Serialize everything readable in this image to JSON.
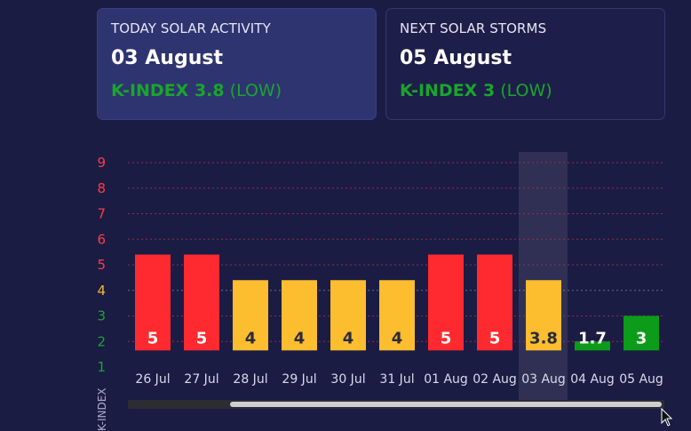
{
  "today_card": {
    "label": "TODAY SOLAR ACTIVITY",
    "date": "03 August",
    "kindex_label": "K-INDEX 3.8",
    "level": "(LOW)"
  },
  "next_card": {
    "label": "NEXT SOLAR STORMS",
    "date": "05 August",
    "kindex_label": "K-INDEX 3",
    "level": "(LOW)"
  },
  "chart_data": {
    "type": "bar",
    "categories": [
      "26 Jul",
      "27 Jul",
      "28 Jul",
      "29 Jul",
      "30 Jul",
      "31 Jul",
      "01 Aug",
      "02 Aug",
      "03 Aug",
      "04 Aug",
      "05 Aug"
    ],
    "values": [
      5,
      5,
      4,
      4,
      4,
      4,
      5,
      5,
      3.8,
      1.7,
      3
    ],
    "bar_heights": [
      5.4,
      5.4,
      4.4,
      4.4,
      4.4,
      4.4,
      5.4,
      5.4,
      4.4,
      2.0,
      3.0
    ],
    "bar_labels": [
      "5",
      "5",
      "4",
      "4",
      "4",
      "4",
      "5",
      "5",
      "3.8",
      "1.7",
      "3"
    ],
    "bar_colors": [
      "#ff2a2f",
      "#ff2a2f",
      "#fcbd2f",
      "#fcbd2f",
      "#fcbd2f",
      "#fcbd2f",
      "#ff2a2f",
      "#ff2a2f",
      "#fcbd2f",
      "#0c9c1a",
      "#0c9c1a"
    ],
    "label_colors": [
      "#ffffff",
      "#ffffff",
      "#2a2a3a",
      "#2a2a3a",
      "#2a2a3a",
      "#2a2a3a",
      "#ffffff",
      "#ffffff",
      "#2a2a3a",
      "#ffffff",
      "#ffffff"
    ],
    "highlighted_index": 8,
    "ylabel": "K-INDEX",
    "yticks": [
      "1",
      "2",
      "3",
      "4",
      "5",
      "6",
      "7",
      "8",
      "9"
    ],
    "ytick_colors": [
      "#1aa52c",
      "#1aa52c",
      "#1aa52c",
      "#f5b82e",
      "#ff3b45",
      "#ff3b45",
      "#ff3b45",
      "#ff3b45",
      "#ff3b45"
    ],
    "ylim": [
      1,
      9
    ],
    "grid": true
  }
}
